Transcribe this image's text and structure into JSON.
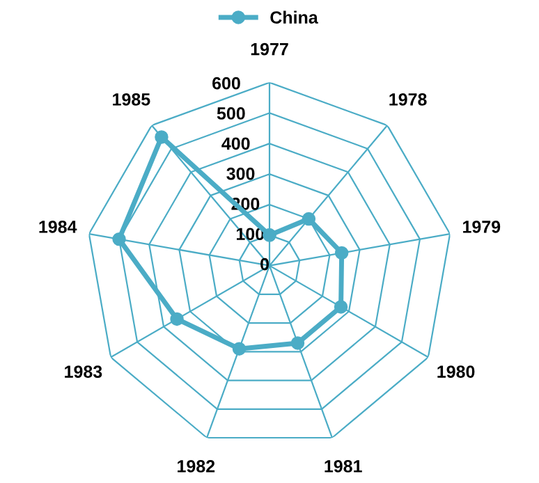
{
  "chart_data": {
    "type": "radar",
    "categories": [
      "1977",
      "1978",
      "1979",
      "1980",
      "1981",
      "1982",
      "1983",
      "1984",
      "1985"
    ],
    "series": [
      {
        "name": "China",
        "color": "#4bacc6",
        "values": [
          100,
          200,
          240,
          270,
          270,
          290,
          350,
          500,
          550
        ]
      }
    ],
    "ylim": [
      0,
      600
    ],
    "yticks": [
      0,
      100,
      200,
      300,
      400,
      500,
      600
    ],
    "grid": true,
    "legend": "top",
    "marker": "circle",
    "line_style": "solid"
  }
}
